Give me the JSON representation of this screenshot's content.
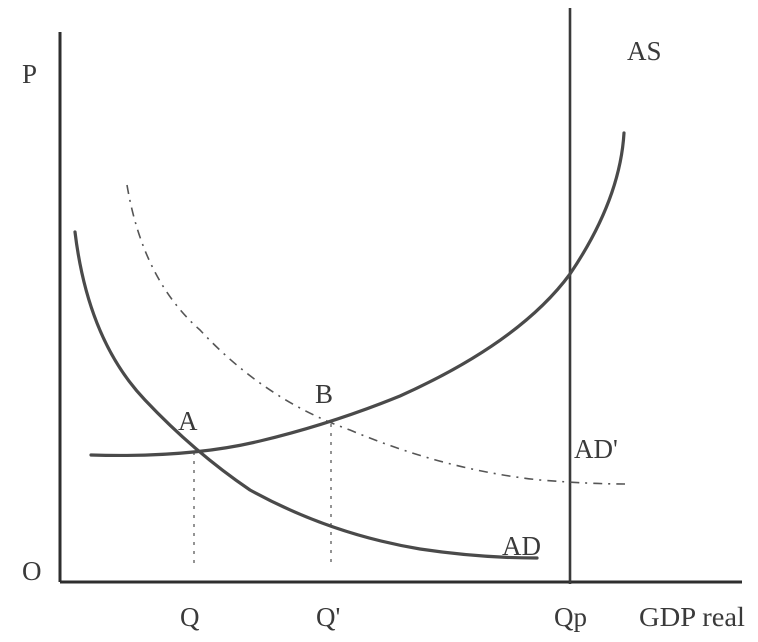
{
  "axes": {
    "y_label": "P",
    "origin_label": "O",
    "x_label": "GDP real"
  },
  "x_ticks": [
    "Q",
    "Q'",
    "Qp"
  ],
  "curves": {
    "as_label": "AS",
    "ad_label": "AD",
    "ad_prime_label": "AD'"
  },
  "points": {
    "a_label": "A",
    "b_label": "B"
  }
}
